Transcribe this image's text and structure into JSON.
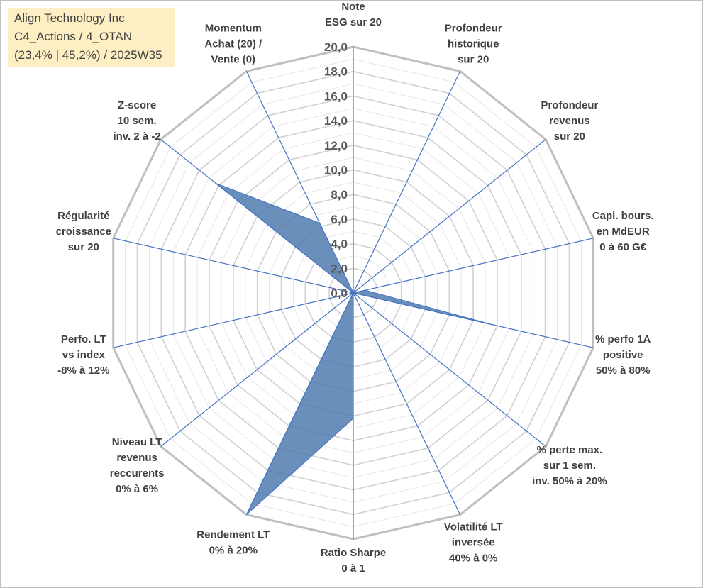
{
  "header": {
    "line1": "Align Technology Inc",
    "line2": "C4_Actions / 4_OTAN",
    "line3": "(23,4% | 45,2%) / 2025W35"
  },
  "chart_data": {
    "type": "radar",
    "axes": [
      "Note\nESG sur 20",
      "Profondeur\nhistorique\nsur 20",
      "Profondeur\nrevenus\nsur 20",
      "Capi. bours.\nen MdEUR\n0 à 60 G€",
      "% perfo 1A\npositive\n50% à 80%",
      "% perte max.\nsur 1 sem.\ninv. 50% à 20%",
      "Volatilité LT\ninversée\n40% à 0%",
      "Ratio Sharpe\n0 à 1",
      "Rendement LT\n0% à 20%",
      "Niveau LT\nrevenus\nreccurents\n0% à 6%",
      "Perfo. LT\nvs index\n-8% à 12%",
      "Régularité\ncroissance\nsur 20",
      "Z-score\n10 sem.\ninv. 2 à -2",
      "Momentum\nAchat (20) /\nVente (0)"
    ],
    "values": [
      0,
      0,
      0,
      1.0,
      11.8,
      0,
      0,
      10.2,
      20.0,
      0,
      0,
      0,
      14.3,
      6.3
    ],
    "rlim": [
      0,
      20
    ],
    "ticks": [
      "0,0",
      "2,0",
      "4,0",
      "6,0",
      "8,0",
      "10,0",
      "12,0",
      "14,0",
      "16,0",
      "18,0",
      "20,0"
    ],
    "grid": true,
    "colors": {
      "fill": "#4a76ac",
      "line": "#4472c4",
      "grid": "#d9d9d9",
      "outer": "#bfbfbf"
    }
  }
}
